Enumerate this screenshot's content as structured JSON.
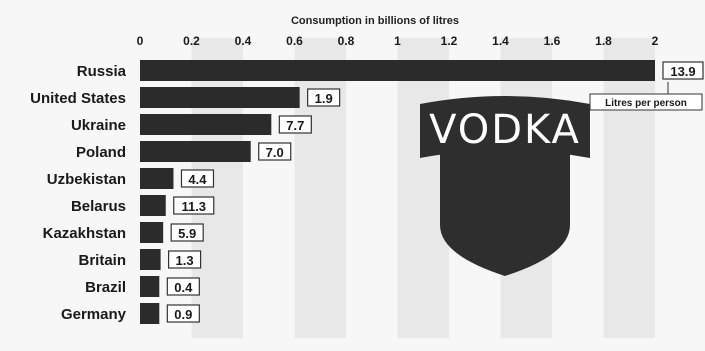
{
  "chart_data": {
    "type": "bar",
    "orientation": "horizontal",
    "title": "Consumption in billions of litres",
    "xlim": [
      0,
      2.1
    ],
    "xticks": [
      "0",
      "0.2",
      "0.4",
      "0.6",
      "0.8",
      "1",
      "1.2",
      "1.4",
      "1.6",
      "1.8",
      "2"
    ],
    "categories": [
      "Russia",
      "United States",
      "Ukraine",
      "Poland",
      "Uzbekistan",
      "Belarus",
      "Kazakhstan",
      "Britain",
      "Brazil",
      "Germany"
    ],
    "values": [
      2.0,
      0.62,
      0.51,
      0.43,
      0.13,
      0.1,
      0.09,
      0.08,
      0.075,
      0.075
    ],
    "litres_per_person": [
      "13.9",
      "1.9",
      "7.7",
      "7.0",
      "4.4",
      "11.3",
      "5.9",
      "1.3",
      "0.4",
      "0.9"
    ],
    "annotation": "Litres per person",
    "colors": {
      "bar": "#2b2b2b",
      "stripe": "#e8e8e8",
      "background": "#f7f7f7",
      "logo": "#2e2e2e"
    }
  },
  "logo": {
    "text": "VODKA"
  }
}
